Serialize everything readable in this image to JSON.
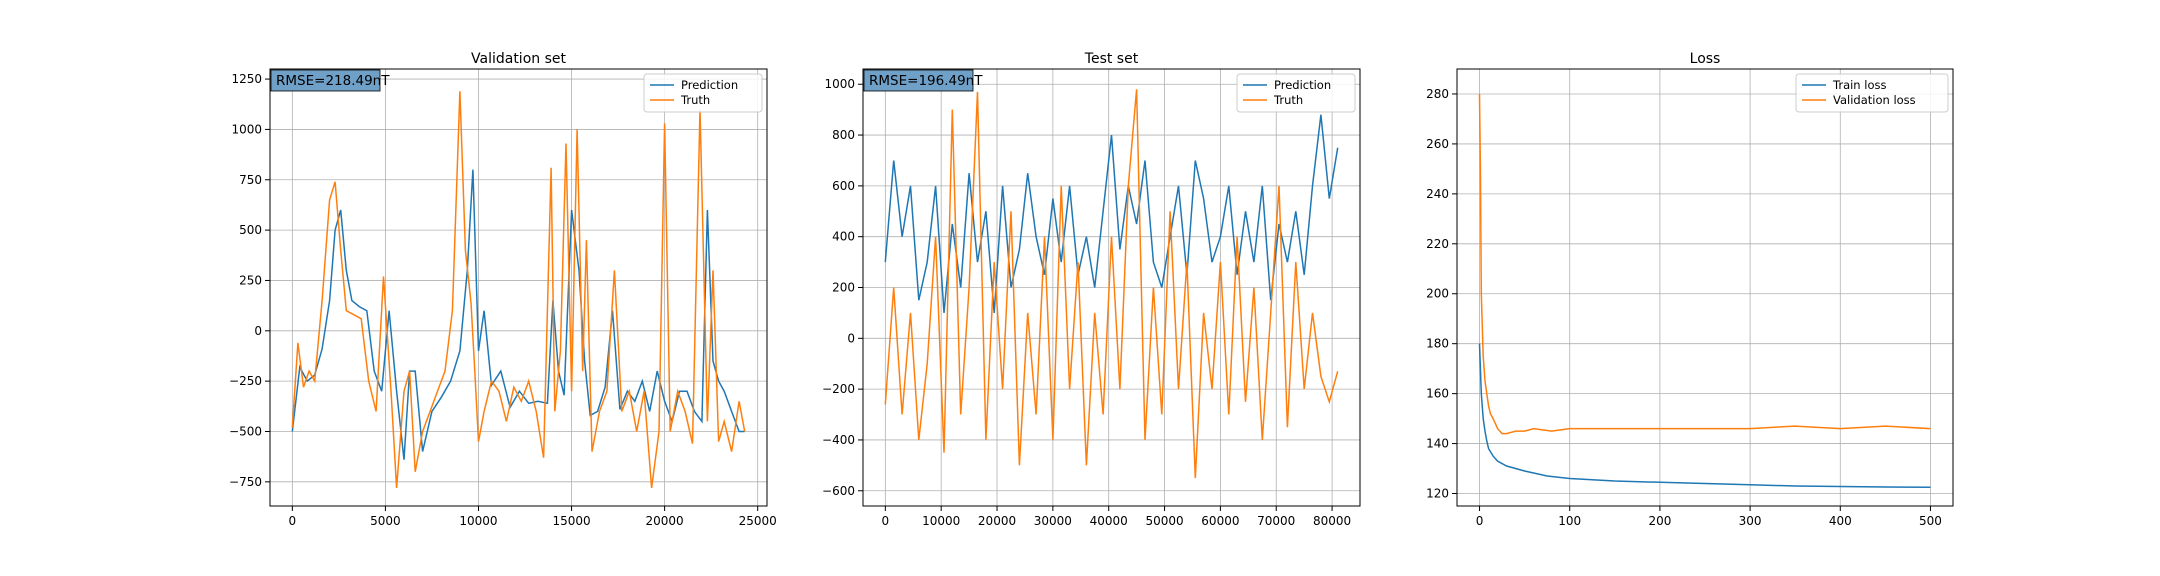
{
  "chart_data": [
    {
      "type": "line",
      "title": "Validation set",
      "xlabel": "",
      "ylabel": "",
      "xlim": [
        -1200,
        25500
      ],
      "ylim": [
        -870,
        1300
      ],
      "xticks": [
        0,
        5000,
        10000,
        15000,
        20000,
        25000
      ],
      "xtick_labels": [
        "0",
        "5000",
        "10000",
        "15000",
        "20000",
        "25000"
      ],
      "yticks": [
        -750,
        -500,
        -250,
        0,
        250,
        500,
        750,
        1000,
        1250
      ],
      "ytick_labels": [
        "−750",
        "−500",
        "−250",
        "0",
        "250",
        "500",
        "750",
        "1000",
        "1250"
      ],
      "grid": true,
      "legend_position": "top-right",
      "annotation": "RMSE=218.49nT",
      "series": [
        {
          "name": "Prediction",
          "color": "#1f77b4",
          "x": [
            0,
            400,
            800,
            1200,
            1600,
            2000,
            2300,
            2600,
            2900,
            3200,
            3600,
            4000,
            4400,
            4800,
            5200,
            5600,
            6000,
            6300,
            6600,
            7000,
            7500,
            8000,
            8500,
            9000,
            9400,
            9700,
            10000,
            10300,
            10700,
            11200,
            11700,
            12200,
            12700,
            13200,
            13700,
            14000,
            14300,
            14600,
            15000,
            15400,
            15700,
            16000,
            16400,
            16800,
            17200,
            17600,
            18000,
            18400,
            18800,
            19200,
            19600,
            20000,
            20400,
            20800,
            21200,
            21600,
            22000,
            22300,
            22600,
            22900,
            23200,
            23600,
            24000,
            24300
          ],
          "y": [
            -500,
            -180,
            -250,
            -220,
            -90,
            150,
            500,
            600,
            300,
            150,
            120,
            100,
            -200,
            -300,
            100,
            -300,
            -640,
            -200,
            -200,
            -600,
            -400,
            -330,
            -250,
            -100,
            300,
            800,
            -100,
            100,
            -270,
            -200,
            -380,
            -300,
            -360,
            -350,
            -360,
            150,
            -200,
            -320,
            600,
            300,
            -150,
            -420,
            -400,
            -280,
            100,
            -390,
            -300,
            -350,
            -250,
            -400,
            -200,
            -350,
            -450,
            -300,
            -300,
            -400,
            -450,
            600,
            -150,
            -250,
            -300,
            -400,
            -500,
            -500
          ]
        },
        {
          "name": "Truth",
          "color": "#ff7f0e",
          "x": [
            0,
            300,
            600,
            900,
            1200,
            1600,
            2000,
            2300,
            2600,
            2900,
            3300,
            3700,
            4100,
            4500,
            4900,
            5300,
            5600,
            6000,
            6300,
            6600,
            7000,
            7400,
            7800,
            8200,
            8600,
            9000,
            9300,
            9600,
            9800,
            10000,
            10300,
            10700,
            11100,
            11500,
            11900,
            12300,
            12700,
            13100,
            13500,
            13900,
            14100,
            14400,
            14700,
            15000,
            15300,
            15600,
            15800,
            16100,
            16500,
            16900,
            17300,
            17700,
            18100,
            18500,
            18900,
            19300,
            19700,
            20000,
            20300,
            20700,
            21100,
            21500,
            21900,
            22300,
            22600,
            22900,
            23200,
            23600,
            24000,
            24300
          ],
          "y": [
            -480,
            -60,
            -280,
            -200,
            -250,
            150,
            650,
            740,
            400,
            100,
            80,
            60,
            -250,
            -400,
            270,
            -300,
            -780,
            -300,
            -200,
            -700,
            -500,
            -400,
            -300,
            -200,
            100,
            1190,
            400,
            140,
            -200,
            -550,
            -400,
            -250,
            -300,
            -450,
            -280,
            -350,
            -250,
            -400,
            -630,
            810,
            -400,
            -100,
            930,
            -300,
            1000,
            -200,
            450,
            -600,
            -400,
            -300,
            300,
            -400,
            -300,
            -500,
            -300,
            -780,
            -500,
            1030,
            -500,
            -300,
            -400,
            -560,
            1100,
            -450,
            300,
            -550,
            -450,
            -600,
            -350,
            -500
          ]
        }
      ]
    },
    {
      "type": "line",
      "title": "Test set",
      "xlabel": "",
      "ylabel": "",
      "xlim": [
        -4000,
        85000
      ],
      "ylim": [
        -660,
        1060
      ],
      "xticks": [
        0,
        10000,
        20000,
        30000,
        40000,
        50000,
        60000,
        70000,
        80000
      ],
      "xtick_labels": [
        "0",
        "10000",
        "20000",
        "30000",
        "40000",
        "50000",
        "60000",
        "70000",
        "80000"
      ],
      "yticks": [
        -600,
        -400,
        -200,
        0,
        200,
        400,
        600,
        800,
        1000
      ],
      "ytick_labels": [
        "−600",
        "−400",
        "−200",
        "0",
        "200",
        "400",
        "600",
        "800",
        "1000"
      ],
      "grid": true,
      "legend_position": "top-right",
      "annotation": "RMSE=196.49nT",
      "series": [
        {
          "name": "Prediction",
          "color": "#1f77b4",
          "x": [
            0,
            1500,
            3000,
            4500,
            6000,
            7500,
            9000,
            10500,
            12000,
            13500,
            15000,
            16500,
            18000,
            19500,
            21000,
            22500,
            24000,
            25500,
            27000,
            28500,
            30000,
            31500,
            33000,
            34500,
            36000,
            37500,
            39000,
            40500,
            42000,
            43500,
            45000,
            46500,
            48000,
            49500,
            51000,
            52500,
            54000,
            55500,
            57000,
            58500,
            60000,
            61500,
            63000,
            64500,
            66000,
            67500,
            69000,
            70500,
            72000,
            73500,
            75000,
            76500,
            78000,
            79500,
            81000
          ],
          "y": [
            300,
            700,
            400,
            600,
            150,
            300,
            600,
            100,
            450,
            200,
            650,
            300,
            500,
            100,
            600,
            200,
            350,
            650,
            400,
            250,
            550,
            300,
            600,
            250,
            400,
            200,
            500,
            800,
            350,
            600,
            450,
            700,
            300,
            200,
            400,
            600,
            250,
            700,
            550,
            300,
            400,
            600,
            250,
            500,
            300,
            600,
            150,
            450,
            300,
            500,
            250,
            600,
            880,
            550,
            750
          ]
        },
        {
          "name": "Truth",
          "color": "#ff7f0e",
          "x": [
            0,
            1500,
            3000,
            4500,
            6000,
            7500,
            9000,
            10500,
            12000,
            13500,
            15000,
            16500,
            18000,
            19500,
            21000,
            22500,
            24000,
            25500,
            27000,
            28500,
            30000,
            31500,
            33000,
            34500,
            36000,
            37500,
            39000,
            40500,
            42000,
            43500,
            45000,
            46500,
            48000,
            49500,
            51000,
            52500,
            54000,
            55500,
            57000,
            58500,
            60000,
            61500,
            63000,
            64500,
            66000,
            67500,
            69000,
            70500,
            72000,
            73500,
            75000,
            76500,
            78000,
            79500,
            81000
          ],
          "y": [
            -260,
            200,
            -300,
            100,
            -400,
            -100,
            400,
            -450,
            900,
            -300,
            200,
            970,
            -400,
            300,
            -200,
            500,
            -500,
            100,
            -300,
            400,
            -400,
            600,
            -200,
            300,
            -500,
            100,
            -300,
            400,
            -200,
            600,
            980,
            -400,
            200,
            -300,
            500,
            -200,
            300,
            -550,
            100,
            -200,
            300,
            -300,
            400,
            -250,
            200,
            -400,
            100,
            600,
            -350,
            300,
            -200,
            100,
            -150,
            -250,
            -130
          ]
        }
      ]
    },
    {
      "type": "line",
      "title": "Loss",
      "xlabel": "",
      "ylabel": "",
      "xlim": [
        -25,
        525
      ],
      "ylim": [
        115,
        290
      ],
      "xticks": [
        0,
        100,
        200,
        300,
        400,
        500
      ],
      "xtick_labels": [
        "0",
        "100",
        "200",
        "300",
        "400",
        "500"
      ],
      "yticks": [
        120,
        140,
        160,
        180,
        200,
        220,
        240,
        260,
        280
      ],
      "ytick_labels": [
        "120",
        "140",
        "160",
        "180",
        "200",
        "220",
        "240",
        "260",
        "280"
      ],
      "grid": true,
      "legend_position": "top-right",
      "series": [
        {
          "name": "Train loss",
          "color": "#1f77b4",
          "x": [
            0,
            2,
            4,
            6,
            8,
            10,
            15,
            20,
            30,
            50,
            75,
            100,
            150,
            200,
            250,
            300,
            350,
            400,
            450,
            500
          ],
          "y": [
            180,
            160,
            150,
            145,
            141,
            138,
            135,
            133,
            131,
            129,
            127,
            126,
            125,
            124.5,
            124,
            123.5,
            123,
            122.8,
            122.6,
            122.5
          ]
        },
        {
          "name": "Validation loss",
          "color": "#ff7f0e",
          "x": [
            0,
            1,
            2,
            4,
            6,
            8,
            10,
            12,
            15,
            20,
            25,
            30,
            40,
            50,
            60,
            80,
            100,
            150,
            200,
            250,
            300,
            350,
            400,
            450,
            500
          ],
          "y": [
            280,
            250,
            200,
            175,
            165,
            160,
            155,
            152,
            150,
            146,
            144,
            144,
            145,
            145,
            146,
            145,
            146,
            146,
            146,
            146,
            146,
            147,
            146,
            147,
            146
          ]
        }
      ]
    }
  ]
}
